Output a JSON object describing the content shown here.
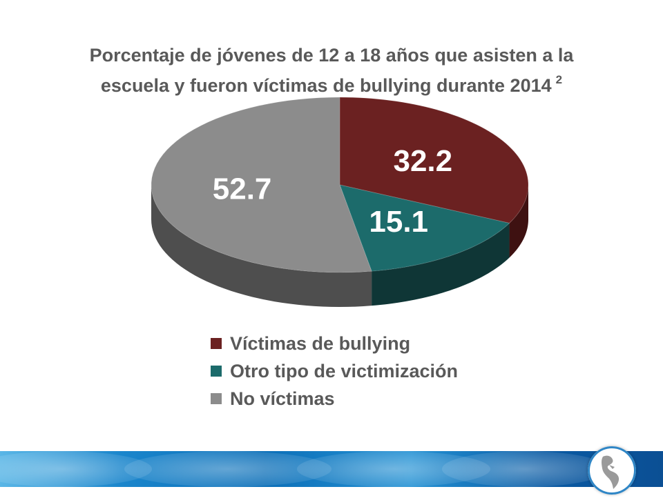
{
  "chart_data": {
    "type": "pie",
    "title": "Porcentaje de jóvenes de 12 a 18 años que asisten a la escuela y fueron víctimas de bullying  durante 2014",
    "title_line1": "Porcentaje de jóvenes de 12 a 18 años que asisten a la",
    "title_line2": "escuela y fueron víctimas de bullying  durante 2014",
    "title_superscript": "2",
    "categories": [
      "Víctimas de bullying",
      "Otro tipo de victimización",
      "No víctimas"
    ],
    "values": [
      32.2,
      15.1,
      52.7
    ],
    "value_labels": [
      "32.2",
      "15.1",
      "52.7"
    ],
    "colors": [
      "#6b2121",
      "#1c6b6b",
      "#8c8c8c"
    ],
    "side_colors": [
      "#3e1111",
      "#0f3636",
      "#4e4e4e"
    ],
    "style": "3d",
    "legend_position": "bottom"
  },
  "footer": {
    "emblem_icon": "americas-map-icon"
  }
}
